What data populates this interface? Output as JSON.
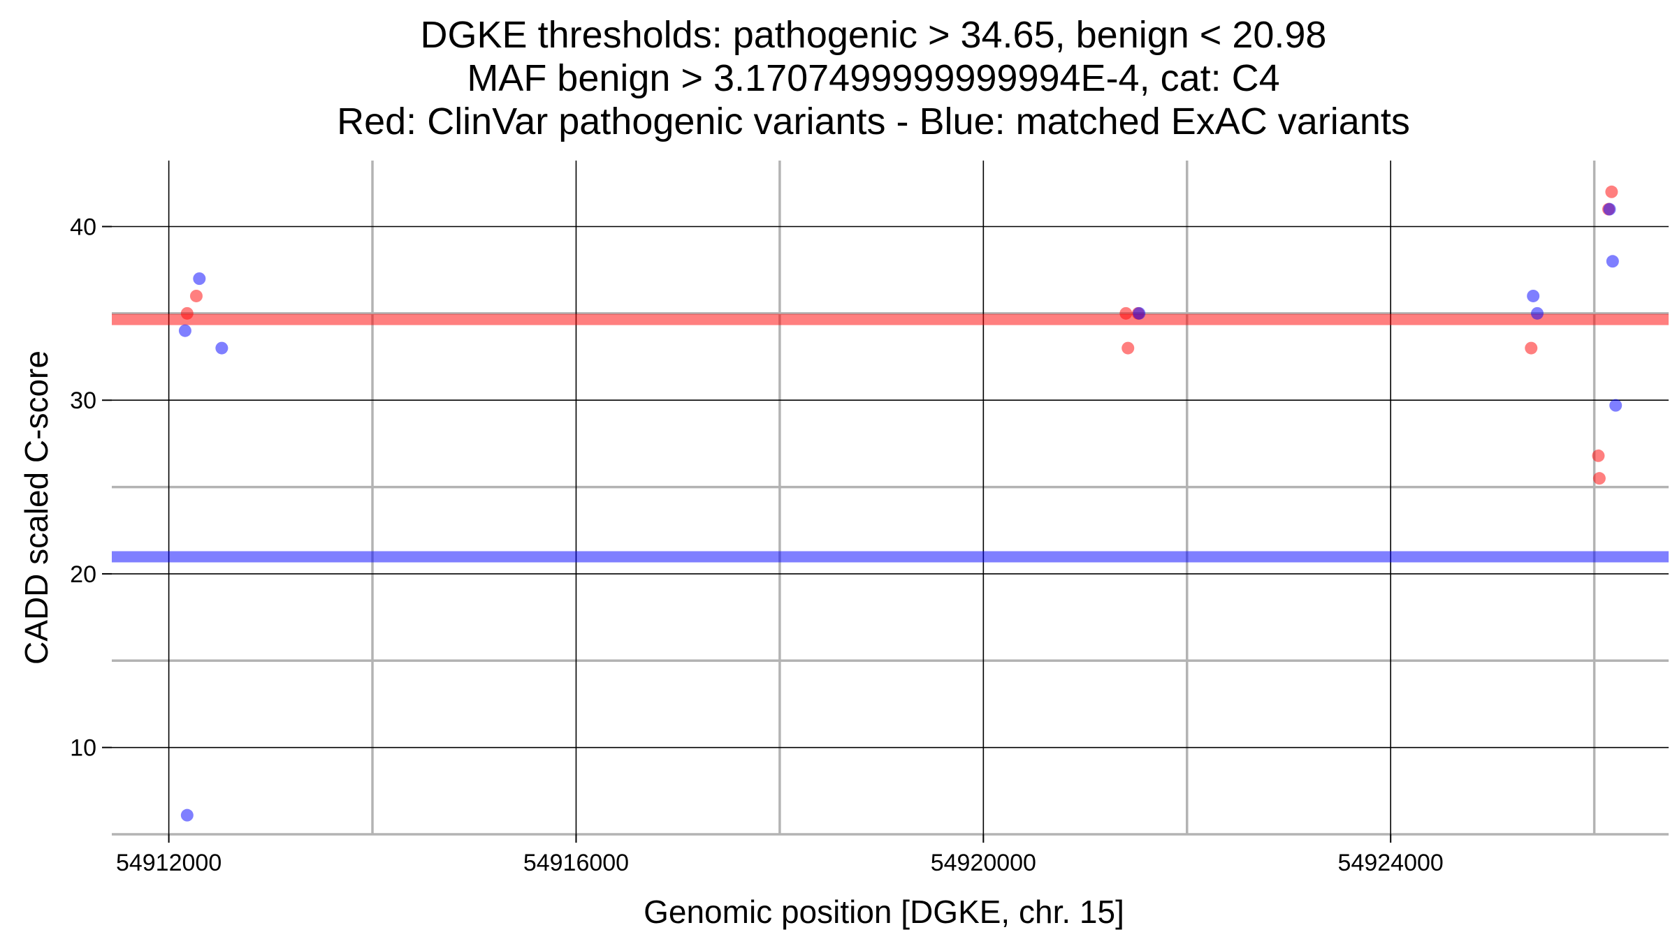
{
  "chart_data": {
    "type": "scatter",
    "title_lines": [
      "DGKE thresholds: pathogenic > 34.65, benign < 20.98",
      "MAF benign > 3.1707499999999994E-4, cat: C4",
      "Red: ClinVar pathogenic variants - Blue: matched ExAC variants"
    ],
    "xlabel": "Genomic position [DGKE, chr. 15]",
    "ylabel": "CADD scaled C-score",
    "xlim": [
      54911440,
      54926730
    ],
    "ylim": [
      5,
      43.8
    ],
    "x_major_ticks": [
      54912000,
      54916000,
      54920000,
      54924000
    ],
    "x_tick_labels": [
      "54912000",
      "54916000",
      "54920000",
      "54924000"
    ],
    "x_minor_ticks": [
      54914000,
      54918000,
      54922000,
      54926000
    ],
    "y_major_ticks": [
      10,
      20,
      30,
      40
    ],
    "y_tick_labels": [
      "10",
      "20",
      "30",
      "40"
    ],
    "y_minor_ticks": [
      5,
      15,
      25,
      35
    ],
    "thresholds": [
      {
        "name": "pathogenic",
        "value": 34.65,
        "color": "#ff0000"
      },
      {
        "name": "benign",
        "value": 20.98,
        "color": "#0000ff"
      }
    ],
    "series": [
      {
        "name": "ClinVar pathogenic variants",
        "color": "#ff0000",
        "points": [
          {
            "x": 54912180,
            "y": 35
          },
          {
            "x": 54912270,
            "y": 36
          },
          {
            "x": 54921400,
            "y": 35
          },
          {
            "x": 54921420,
            "y": 33
          },
          {
            "x": 54921520,
            "y": 35
          },
          {
            "x": 54925380,
            "y": 33
          },
          {
            "x": 54926040,
            "y": 26.8
          },
          {
            "x": 54926050,
            "y": 25.5
          },
          {
            "x": 54926140,
            "y": 41
          },
          {
            "x": 54926170,
            "y": 42
          }
        ]
      },
      {
        "name": "matched ExAC variants",
        "color": "#0000ff",
        "points": [
          {
            "x": 54912160,
            "y": 34
          },
          {
            "x": 54912300,
            "y": 37
          },
          {
            "x": 54912520,
            "y": 33
          },
          {
            "x": 54912180,
            "y": 6.1
          },
          {
            "x": 54921530,
            "y": 35
          },
          {
            "x": 54925400,
            "y": 36
          },
          {
            "x": 54925440,
            "y": 35
          },
          {
            "x": 54926150,
            "y": 41
          },
          {
            "x": 54926180,
            "y": 38
          },
          {
            "x": 54926210,
            "y": 29.7
          }
        ]
      }
    ]
  }
}
